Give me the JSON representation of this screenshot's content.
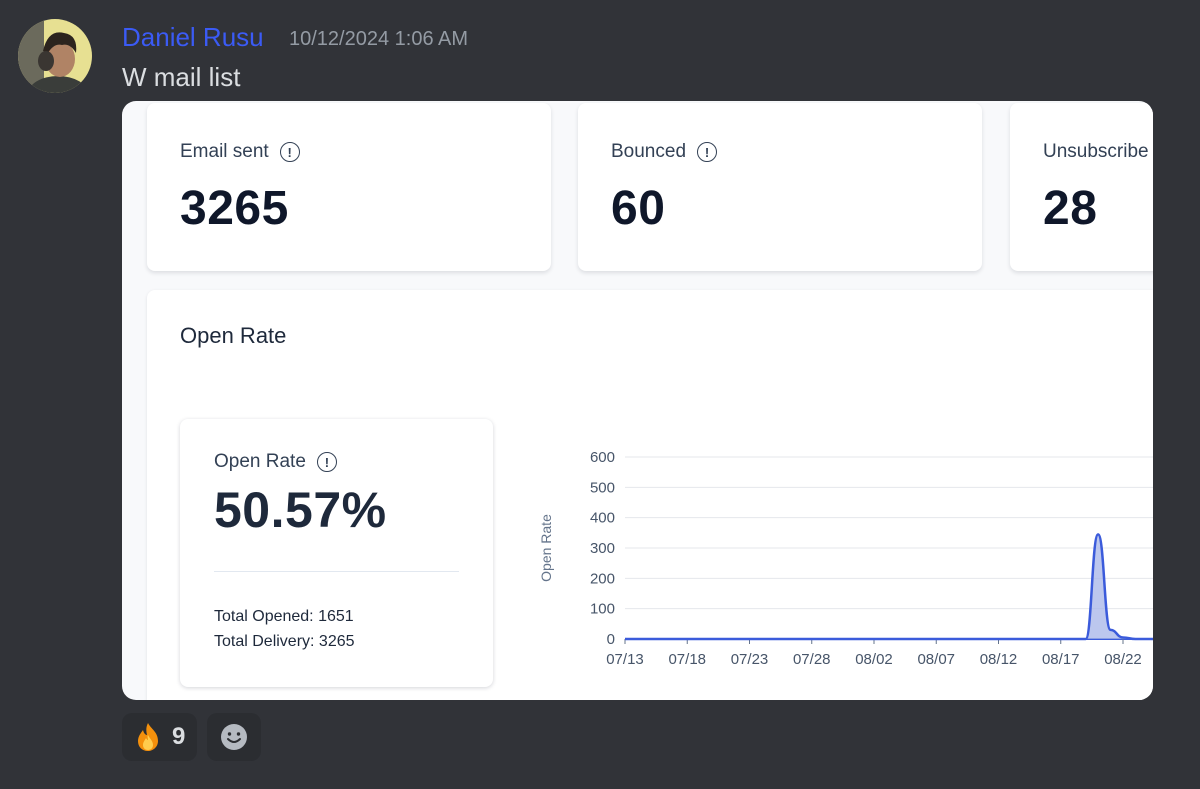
{
  "message": {
    "author": "Daniel Rusu",
    "timestamp": "10/12/2024 1:06 AM",
    "text": "W mail list"
  },
  "dashboard": {
    "stats": [
      {
        "label": "Email sent",
        "value": "3265"
      },
      {
        "label": "Bounced",
        "value": "60"
      },
      {
        "label": "Unsubscribe",
        "value": "28"
      }
    ],
    "panel_title": "Open Rate",
    "open_rate": {
      "label": "Open Rate",
      "value": "50.57%",
      "total_opened": "Total Opened: 1651",
      "total_delivery": "Total Delivery: 3265"
    }
  },
  "chart_data": {
    "type": "area",
    "ylabel": "Open Rate",
    "xlabel": "",
    "ylim": [
      0,
      600
    ],
    "y_ticks": [
      "0",
      "100",
      "200",
      "300",
      "400",
      "500",
      "600"
    ],
    "x_ticks": [
      "07/13",
      "07/18",
      "07/23",
      "07/28",
      "08/02",
      "08/07",
      "08/12",
      "08/17",
      "08/22"
    ],
    "x_start": "2024-07-13",
    "series": [
      {
        "name": "",
        "color": "#3b5bdb",
        "points": [
          {
            "x": "2024-07-13",
            "y": 0
          },
          {
            "x": "2024-08-19",
            "y": 0
          },
          {
            "x": "2024-08-20",
            "y": 345
          },
          {
            "x": "2024-08-21",
            "y": 30
          },
          {
            "x": "2024-08-22",
            "y": 5
          },
          {
            "x": "2024-08-23",
            "y": 0
          }
        ]
      }
    ],
    "grid": true
  },
  "reactions": [
    {
      "emoji": "fire-icon",
      "count": "9"
    }
  ],
  "colors": {
    "author": "#3b5bf5",
    "chart_line": "#3b5bdb",
    "chart_fill": "#a5b4e8"
  }
}
